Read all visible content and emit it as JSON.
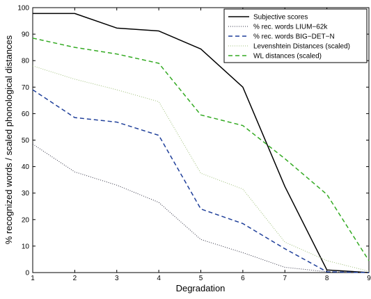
{
  "chart_data": {
    "type": "line",
    "xlabel": "Degradation",
    "ylabel": "% recognized words / scaled phonological distances",
    "xlim": [
      1,
      9
    ],
    "ylim": [
      0,
      100
    ],
    "x_ticks": [
      1,
      2,
      3,
      4,
      5,
      6,
      7,
      8,
      9
    ],
    "y_ticks": [
      0,
      10,
      20,
      30,
      40,
      50,
      60,
      70,
      80,
      90,
      100
    ],
    "x": [
      1,
      2,
      3,
      4,
      5,
      6,
      7,
      8,
      9
    ],
    "grid": false,
    "legend_position": "top-right",
    "series": [
      {
        "name": "Subjective scores",
        "color": "#000000",
        "style": "solid",
        "width": 1.5,
        "values": [
          97.8,
          97.8,
          92.3,
          91.2,
          84.4,
          70.0,
          32.5,
          1.0,
          0.0
        ]
      },
      {
        "name": "% rec. words LIUM−62k",
        "color": "#333344",
        "style": "dotted",
        "width": 1.0,
        "values": [
          48.5,
          38.0,
          33.0,
          26.5,
          12.5,
          7.5,
          2.0,
          0.3,
          0.0
        ]
      },
      {
        "name": "% rec. words BIG−DET−N",
        "color": "#1f3f9a",
        "style": "dashed",
        "width": 1.5,
        "values": [
          69.0,
          58.5,
          56.8,
          51.8,
          24.0,
          18.5,
          9.0,
          0.3,
          0.0
        ]
      },
      {
        "name": "Levenshtein Distances (scaled)",
        "color": "#9fbf7a",
        "style": "dotted",
        "width": 1.0,
        "values": [
          78.0,
          73.0,
          69.0,
          64.5,
          37.5,
          31.5,
          11.5,
          4.5,
          0.5
        ]
      },
      {
        "name": "WL distances (scaled)",
        "color": "#33aa22",
        "style": "dashed",
        "width": 1.5,
        "values": [
          88.5,
          85.0,
          82.5,
          79.0,
          59.5,
          55.5,
          43.0,
          29.5,
          4.5
        ]
      }
    ]
  }
}
